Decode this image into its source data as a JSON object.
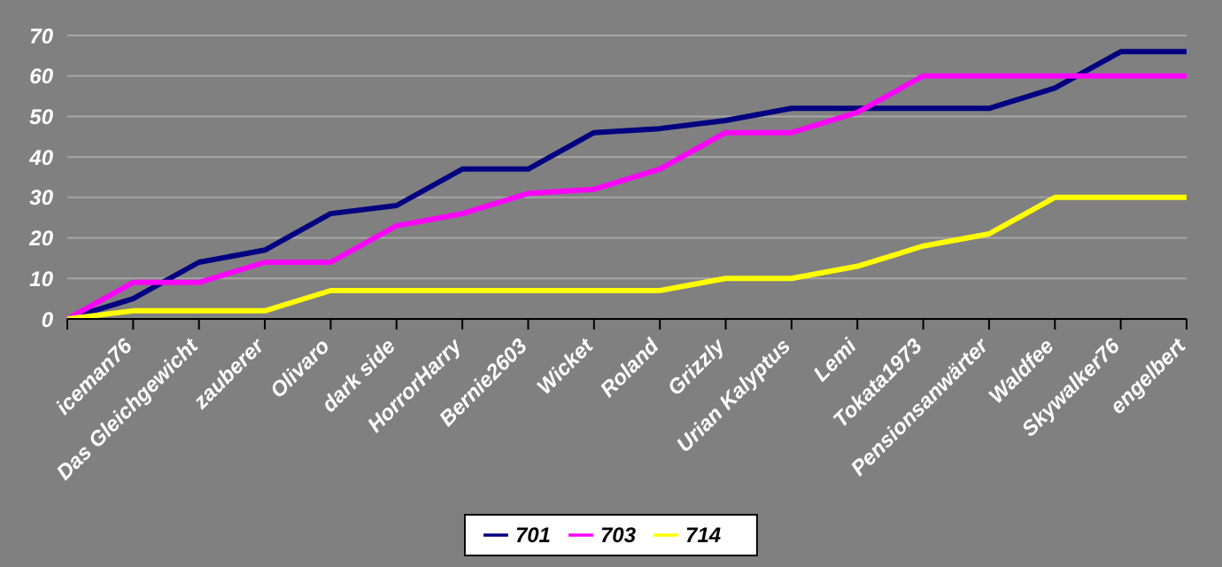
{
  "chart_data": {
    "type": "line",
    "categories": [
      null,
      "iceman76",
      "Das Gleichgewicht",
      "zauberer",
      "Olivaro",
      "dark side",
      "HorrorHarry",
      "Bernie2603",
      "Wicket",
      "Roland",
      "Grizzly",
      "Urian Kalyptus",
      "Lemi",
      "Tokata1973",
      "Pensionsanwärter",
      "Waldfee",
      "Skywalker76",
      "engelbert"
    ],
    "series": [
      {
        "name": "701",
        "color": "#000080",
        "values": [
          0,
          5,
          14,
          17,
          26,
          28,
          37,
          37,
          46,
          47,
          49,
          52,
          52,
          52,
          52,
          57,
          66,
          66
        ]
      },
      {
        "name": "703",
        "color": "#ff00ff",
        "values": [
          0,
          9,
          9,
          14,
          14,
          23,
          26,
          31,
          32,
          37,
          46,
          46,
          51,
          60,
          60,
          60,
          60,
          60
        ]
      },
      {
        "name": "714",
        "color": "#ffff00",
        "values": [
          0,
          2,
          2,
          2,
          7,
          7,
          7,
          7,
          7,
          7,
          10,
          10,
          13,
          18,
          21,
          30,
          30,
          30
        ]
      }
    ],
    "ylim": [
      0,
      70
    ],
    "yticks": [
      0,
      10,
      20,
      30,
      40,
      50,
      60,
      70
    ],
    "grid": "y",
    "legend": "bottom",
    "marker": "none"
  }
}
